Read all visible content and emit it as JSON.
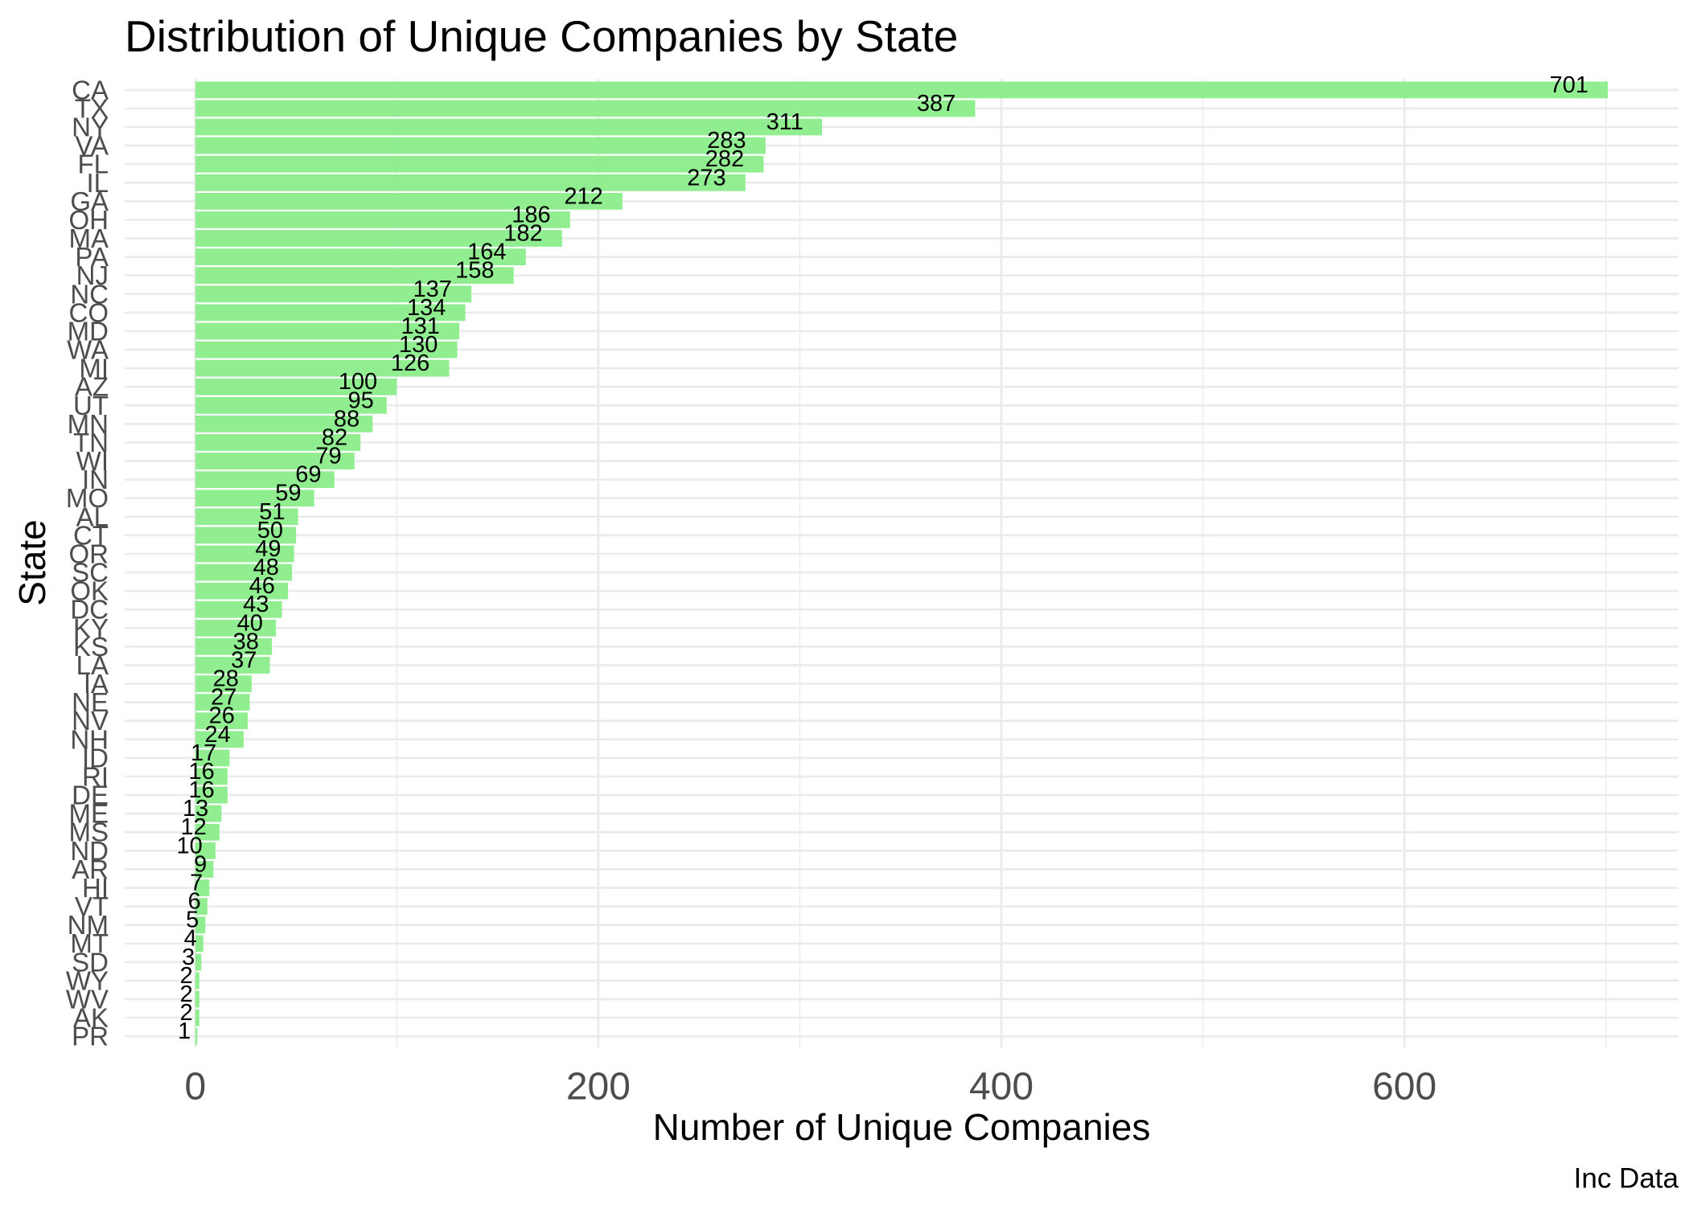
{
  "chart_data": {
    "type": "bar",
    "orientation": "horizontal",
    "title": "Distribution of Unique Companies by State",
    "xlabel": "Number of Unique Companies",
    "ylabel": "State",
    "caption": "Inc Data",
    "categories": [
      "CA",
      "TX",
      "NY",
      "VA",
      "FL",
      "IL",
      "GA",
      "OH",
      "MA",
      "PA",
      "NJ",
      "NC",
      "CO",
      "MD",
      "WA",
      "MI",
      "AZ",
      "UT",
      "MN",
      "TN",
      "WI",
      "IN",
      "MO",
      "AL",
      "CT",
      "OR",
      "SC",
      "OK",
      "DC",
      "KY",
      "KS",
      "LA",
      "IA",
      "NE",
      "NV",
      "NH",
      "ID",
      "RI",
      "DE",
      "ME",
      "MS",
      "ND",
      "AR",
      "HI",
      "VT",
      "NM",
      "MT",
      "SD",
      "WY",
      "WV",
      "AK",
      "PR"
    ],
    "values": [
      701,
      387,
      311,
      283,
      282,
      273,
      212,
      186,
      182,
      164,
      158,
      137,
      134,
      131,
      130,
      126,
      100,
      95,
      88,
      82,
      79,
      69,
      59,
      51,
      50,
      49,
      48,
      46,
      43,
      40,
      38,
      37,
      28,
      27,
      26,
      24,
      17,
      16,
      16,
      13,
      12,
      10,
      9,
      7,
      6,
      5,
      4,
      3,
      2,
      2,
      2,
      1
    ],
    "xlim": [
      -35.05,
      736.05
    ],
    "x_ticks": [
      0,
      200,
      400,
      600
    ],
    "x_tick_labels": [
      "0",
      "200",
      "400",
      "600"
    ],
    "x_minor_ticks": [
      100,
      300,
      500,
      700
    ],
    "grid": true,
    "legend": "none",
    "data_labels": true
  },
  "colors": {
    "background": "#FFFFFF",
    "bar": "#90EE90",
    "grid": "#EBEBEB",
    "title": "#000000",
    "axis_title": "#000000",
    "axis_text": "#4D4D4D",
    "data_label": "#000000"
  }
}
